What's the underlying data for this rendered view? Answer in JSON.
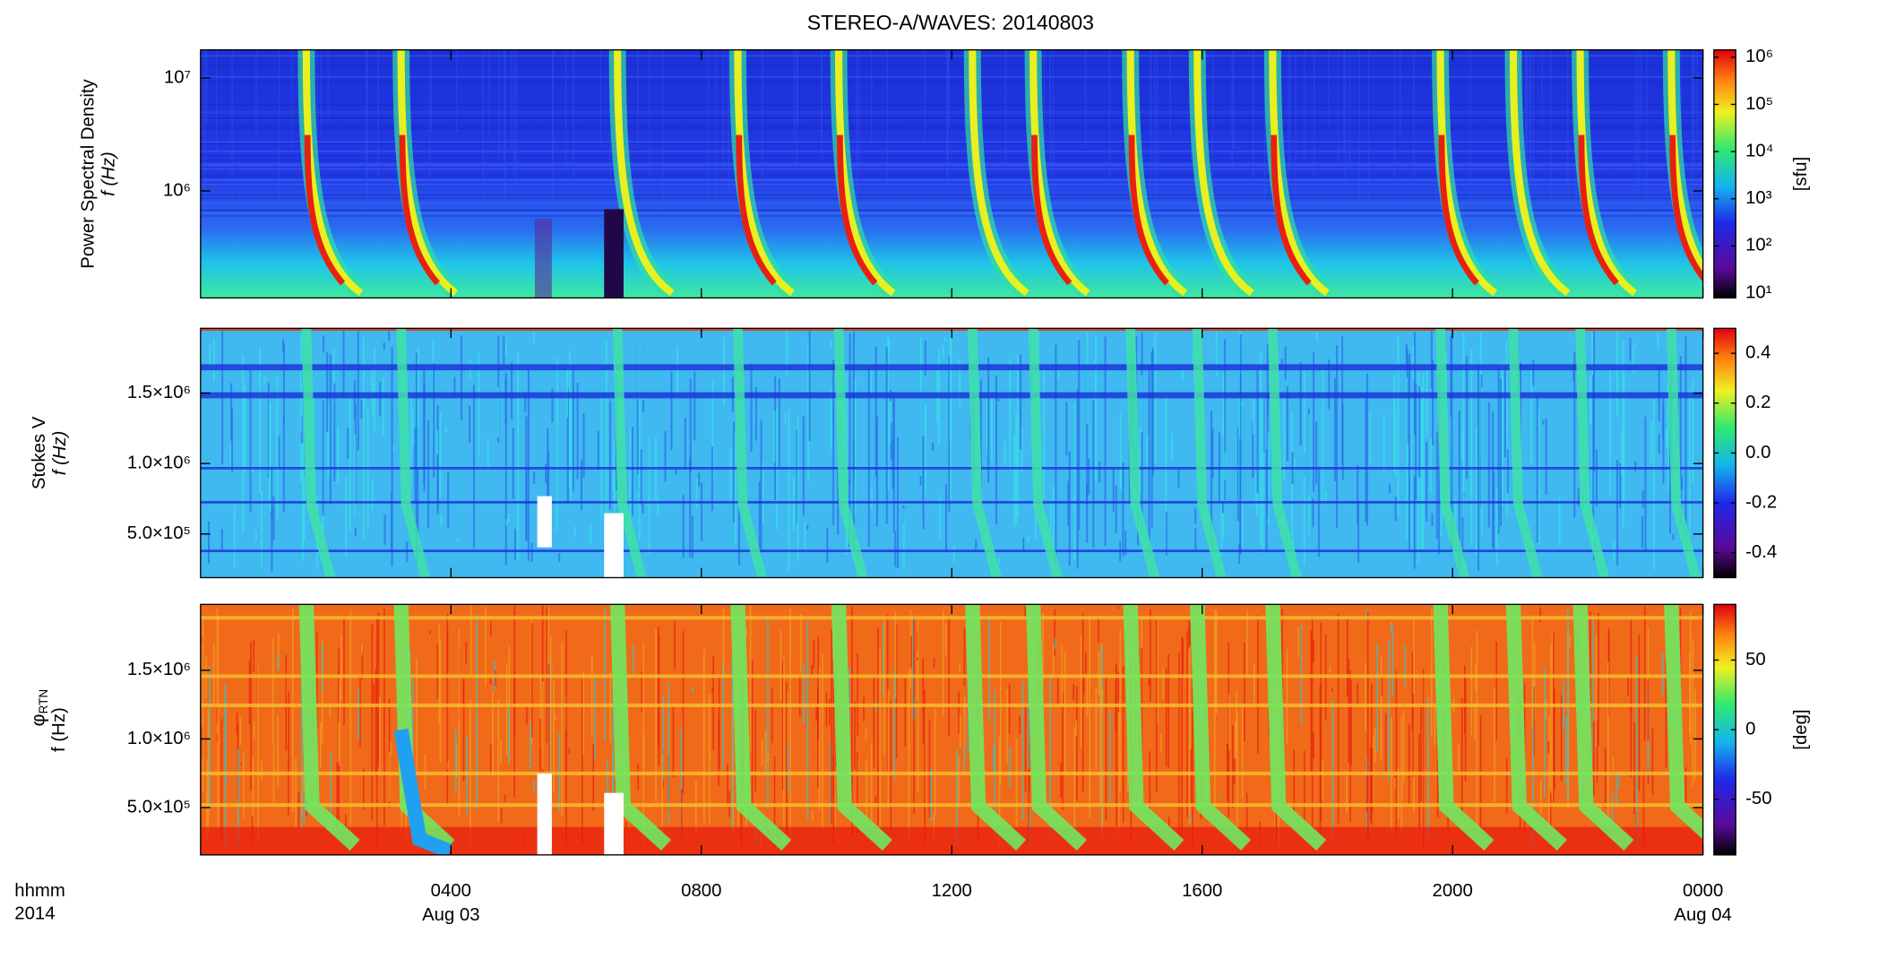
{
  "chart_data": [
    {
      "type": "spectrogram",
      "title": "STEREO-A/WAVES: 20140803",
      "ylabel": [
        "Power Spectral Density",
        "f (Hz)"
      ],
      "log_y": true,
      "xlim": [
        0,
        24
      ],
      "ylim": [
        113000,
        17700000
      ],
      "yticks": [
        {
          "value": 1000000,
          "label": "10⁶"
        },
        {
          "value": 10000000,
          "label": "10⁷"
        }
      ],
      "colorbar": {
        "log": true,
        "clim": [
          7.9,
          1430000
        ],
        "ticks": [
          {
            "value": 10,
            "label": "10¹"
          },
          {
            "value": 100,
            "label": "10²"
          },
          {
            "value": 1000,
            "label": "10³"
          },
          {
            "value": 10000,
            "label": "10⁴"
          },
          {
            "value": 100000,
            "label": "10⁵"
          },
          {
            "value": 1000000,
            "label": "10⁶"
          }
        ],
        "label": "[sfu]"
      }
    },
    {
      "type": "spectrogram",
      "ylabel": [
        "Stokes V",
        "f (Hz)"
      ],
      "log_y": false,
      "xlim": [
        0,
        24
      ],
      "ylim": [
        190000,
        1960000
      ],
      "yticks": [
        {
          "value": 500000,
          "label": "5.0×10⁵"
        },
        {
          "value": 1000000,
          "label": "1.0×10⁶"
        },
        {
          "value": 1500000,
          "label": "1.5×10⁶"
        }
      ],
      "colorbar": {
        "log": false,
        "clim": [
          -0.5,
          0.5
        ],
        "ticks": [
          -0.4,
          -0.2,
          {
            "value": 0,
            "label": "0.0"
          },
          0.2,
          0.4
        ]
      }
    },
    {
      "type": "spectrogram",
      "ylabel": [
        "φ",
        "f (Hz)"
      ],
      "ylabel_subscript": "RTN",
      "log_y": false,
      "xlim": [
        0,
        24
      ],
      "ylim": [
        155000,
        1980000
      ],
      "yticks": [
        {
          "value": 500000,
          "label": "5.0×10⁵"
        },
        {
          "value": 1000000,
          "label": "1.0×10⁶"
        },
        {
          "value": 1500000,
          "label": "1.5×10⁶"
        }
      ],
      "colorbar": {
        "log": false,
        "clim": [
          -90,
          90
        ],
        "ticks": [
          -50,
          0,
          50
        ],
        "label": "[deg]"
      },
      "xlabel": [
        "hhmm",
        "2014"
      ],
      "xticks": [
        {
          "value": 4,
          "label": "0400"
        },
        {
          "value": 8,
          "label": "0800"
        },
        {
          "value": 12,
          "label": "1200"
        },
        {
          "value": 16,
          "label": "1600"
        },
        {
          "value": 20,
          "label": "2000"
        },
        {
          "value": 24,
          "label": "0000"
        }
      ],
      "xtick_dates": [
        {
          "value": 4,
          "label": "Aug 03"
        },
        {
          "value": 24,
          "label": "Aug 04"
        }
      ]
    }
  ]
}
